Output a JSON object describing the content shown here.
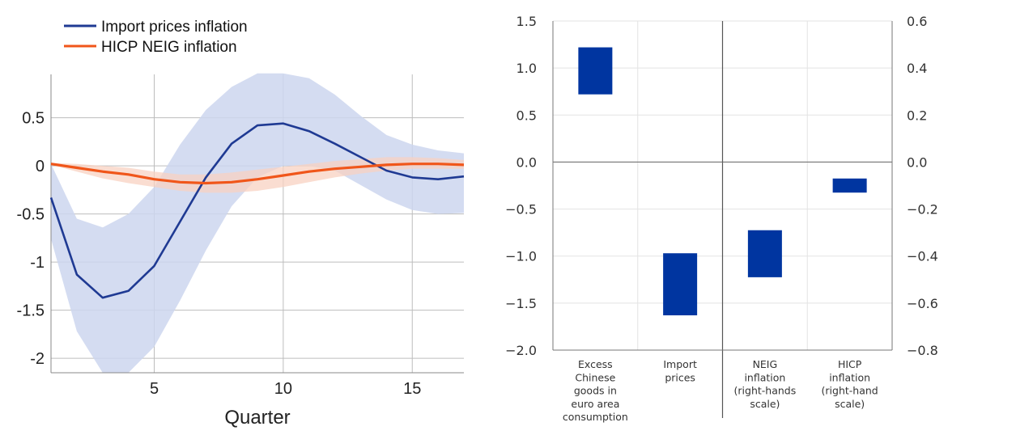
{
  "chart_data": [
    {
      "type": "line",
      "xlabel": "Quarter",
      "ylabel": "",
      "xlim": [
        1,
        17
      ],
      "ylim": [
        -2.15,
        0.95
      ],
      "x_ticks": [
        5,
        10,
        15
      ],
      "x_tick_labels": [
        "5",
        "10",
        "15"
      ],
      "y_ticks": [
        0.5,
        0,
        -0.5,
        -1,
        -1.5,
        -2
      ],
      "y_tick_labels": [
        "0.5",
        "0",
        "-0.5",
        "-1",
        "-1.5",
        "-2"
      ],
      "grid": true,
      "legend_position": "top-left",
      "x": [
        1,
        2,
        3,
        4,
        5,
        6,
        7,
        8,
        9,
        10,
        11,
        12,
        13,
        14,
        15,
        16,
        17
      ],
      "series": [
        {
          "name": "Import prices inflation",
          "color": "#1f3a93",
          "values": [
            -0.33,
            -1.13,
            -1.37,
            -1.3,
            -1.04,
            -0.58,
            -0.12,
            0.23,
            0.42,
            0.44,
            0.36,
            0.23,
            0.09,
            -0.05,
            -0.12,
            -0.14,
            -0.11
          ],
          "band_color": "#cdd6ee",
          "band_upper": [
            0.02,
            -0.55,
            -0.64,
            -0.5,
            -0.22,
            0.22,
            0.58,
            0.82,
            0.96,
            0.96,
            0.91,
            0.74,
            0.52,
            0.32,
            0.22,
            0.16,
            0.13
          ],
          "band_lower": [
            -0.76,
            -1.72,
            -2.15,
            -2.15,
            -1.88,
            -1.4,
            -0.88,
            -0.42,
            -0.12,
            0.0,
            0.0,
            -0.05,
            -0.2,
            -0.35,
            -0.46,
            -0.5,
            -0.49
          ]
        },
        {
          "name": "HICP NEIG inflation",
          "color": "#f0561a",
          "values": [
            0.02,
            -0.02,
            -0.06,
            -0.09,
            -0.14,
            -0.17,
            -0.18,
            -0.17,
            -0.14,
            -0.1,
            -0.06,
            -0.03,
            -0.01,
            0.01,
            0.02,
            0.02,
            0.01
          ],
          "band_color": "#f8d2c2",
          "band_upper": [
            0.03,
            0.02,
            0.0,
            -0.02,
            -0.06,
            -0.09,
            -0.09,
            -0.07,
            -0.04,
            -0.01,
            0.02,
            0.05,
            0.07,
            0.09,
            0.09,
            0.08,
            0.06
          ],
          "band_lower": [
            0.01,
            -0.06,
            -0.13,
            -0.18,
            -0.22,
            -0.26,
            -0.28,
            -0.28,
            -0.26,
            -0.22,
            -0.17,
            -0.12,
            -0.08,
            -0.05,
            -0.03,
            -0.03,
            -0.03
          ]
        }
      ]
    },
    {
      "type": "bar",
      "subtype": "floating",
      "categories": [
        "Excess Chinese goods in euro area consumption",
        "Import prices",
        "NEIG inflation (right-hands scale)",
        "HICP inflation (right-hand scale)"
      ],
      "category_label_lines": [
        [
          "Excess",
          "Chinese",
          "goods in",
          "euro area",
          "consumption"
        ],
        [
          "Import",
          "prices"
        ],
        [
          "NEIG",
          "inflation",
          "(right-hands",
          "scale)"
        ],
        [
          "HICP",
          "inflation",
          "(right-hand",
          "scale)"
        ]
      ],
      "axis": [
        "left",
        "left",
        "right",
        "right"
      ],
      "low": [
        0.72,
        -1.63,
        -0.49,
        -0.13
      ],
      "high": [
        1.22,
        -0.97,
        -0.29,
        -0.07
      ],
      "bar_color": "#0035a0",
      "ylim_left": [
        -2.0,
        1.5
      ],
      "ylim_right": [
        -0.8,
        0.6
      ],
      "y_ticks_left": [
        1.5,
        1.0,
        0.5,
        0.0,
        -0.5,
        -1.0,
        -1.5,
        -2.0
      ],
      "y_tick_labels_left": [
        "1.5",
        "1.0",
        "0.5",
        "0.0",
        "−0.5",
        "−1.0",
        "−1.5",
        "−2.0"
      ],
      "y_ticks_right": [
        0.6,
        0.4,
        0.2,
        0.0,
        -0.2,
        -0.4,
        -0.6,
        -0.8
      ],
      "y_tick_labels_right": [
        "0.6",
        "0.4",
        "0.2",
        "0.0",
        "−0.2",
        "−0.4",
        "−0.6",
        "−0.8"
      ],
      "grid": true
    }
  ]
}
